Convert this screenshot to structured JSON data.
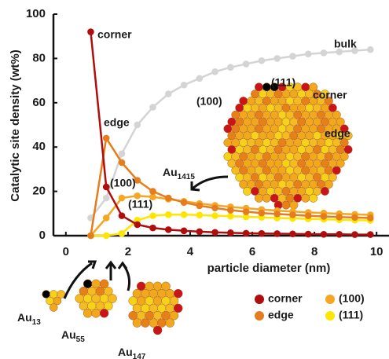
{
  "chart_data": {
    "type": "line",
    "y_label": "Catalytic site density (wt%)",
    "x_label": "particle diameter (nm)",
    "xlim": [
      -0.4,
      10.4
    ],
    "xticks": [
      0,
      2,
      4,
      6,
      8,
      10
    ],
    "ylim": [
      0,
      100
    ],
    "yticks": [
      0,
      20,
      40,
      60,
      80,
      100
    ],
    "x": [
      0.8,
      1.3,
      1.8,
      2.3,
      2.8,
      3.3,
      3.8,
      4.3,
      4.8,
      5.3,
      5.8,
      6.3,
      6.8,
      7.3,
      7.8,
      8.3,
      8.8,
      9.3,
      9.8
    ],
    "series": [
      {
        "name": "corner",
        "color": "#b00d0d",
        "values": [
          92,
          22,
          9,
          5,
          3.5,
          2.7,
          2.2,
          1.8,
          1.5,
          1.3,
          1.1,
          1.0,
          0.9,
          0.8,
          0.7,
          0.6,
          0.6,
          0.5,
          0.5
        ]
      },
      {
        "name": "edge",
        "color": "#e57c1e",
        "values": [
          0,
          44,
          33,
          25,
          20,
          17,
          15,
          13.5,
          12.5,
          11.5,
          10.8,
          10.2,
          9.8,
          9.4,
          9,
          8.7,
          8.4,
          8.2,
          8
        ]
      },
      {
        "name": "(100)",
        "color": "#f5a623",
        "values": [
          0,
          8,
          17,
          18,
          17.5,
          16.5,
          15.5,
          14.5,
          13.7,
          13,
          12.4,
          11.8,
          11.3,
          10.9,
          10.5,
          10.2,
          9.9,
          9.6,
          9.4
        ]
      },
      {
        "name": "(111)",
        "color": "#ffe600",
        "values": [
          0,
          0,
          1,
          7,
          9,
          9.5,
          9.5,
          9.3,
          9,
          8.8,
          8.5,
          8.3,
          8,
          7.8,
          7.6,
          7.4,
          7.2,
          7,
          6.9
        ]
      },
      {
        "color": "#d4d4d4",
        "values": [
          8,
          17,
          37,
          50,
          58,
          64,
          68,
          71,
          74,
          76,
          77.5,
          79,
          80,
          81,
          82,
          82.5,
          83,
          83.5,
          84
        ]
      }
    ],
    "annotations": [
      "corner",
      "bulk",
      "edge",
      "(100)",
      "(111)",
      "(111)",
      "(100)",
      "corner",
      "edge"
    ],
    "particles": [
      {
        "base": "Au",
        "sub": "1415"
      },
      {
        "base": "Au",
        "sub": "13"
      },
      {
        "base": "Au",
        "sub": "55"
      },
      {
        "base": "Au",
        "sub": "147"
      }
    ]
  }
}
